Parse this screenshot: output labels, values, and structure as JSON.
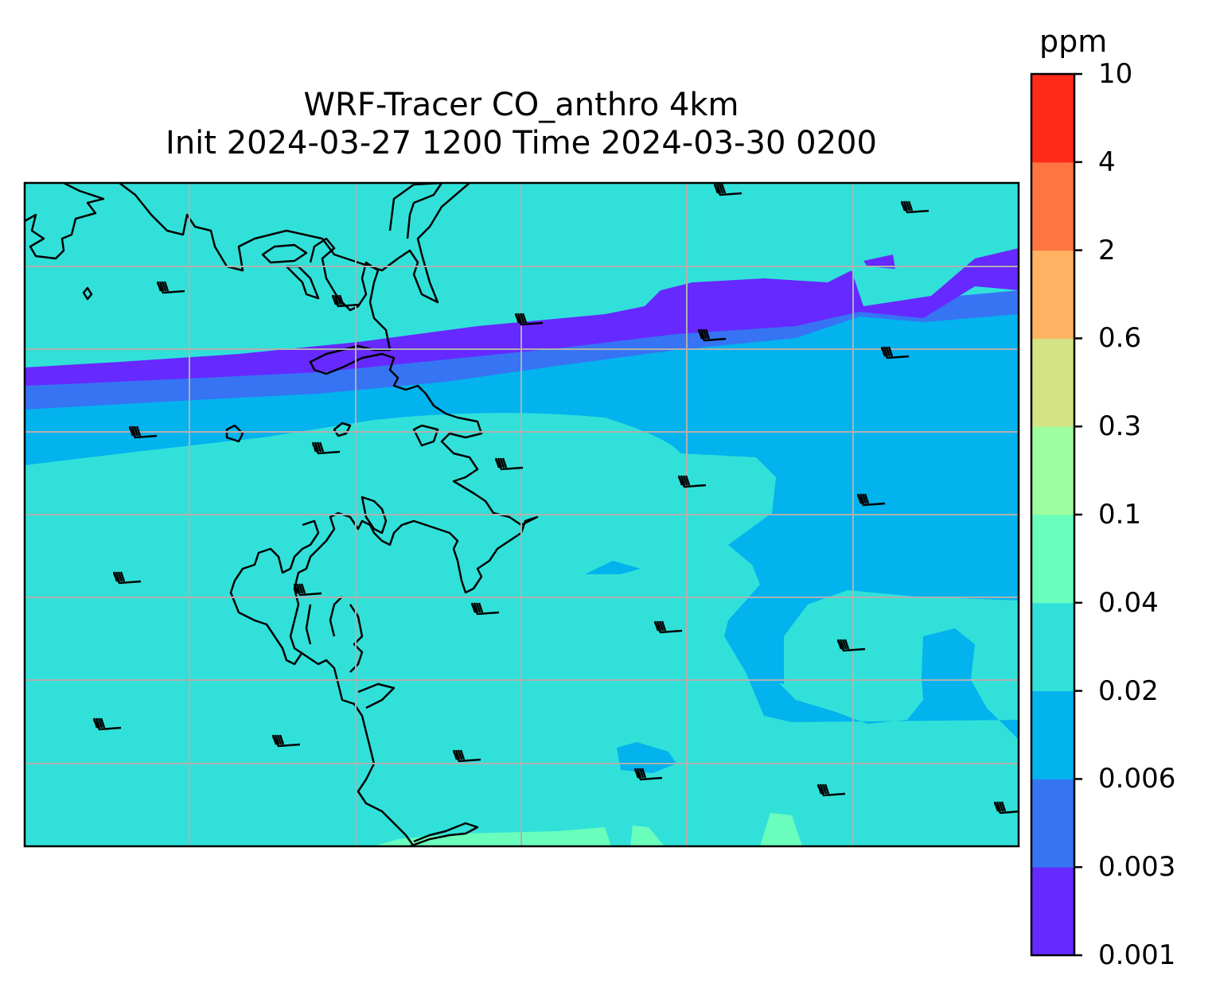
{
  "title": {
    "line1": "WRF-Tracer CO_anthro 4km",
    "line2": "Init 2024-03-27 1200 Time 2024-03-30 0200"
  },
  "colorbar": {
    "units": "ppm",
    "levels": [
      "0.001",
      "0.003",
      "0.006",
      "0.02",
      "0.04",
      "0.1",
      "0.3",
      "0.6",
      "2",
      "4",
      "10"
    ],
    "colors": [
      "#6629ff",
      "#3674f4",
      "#02b3ee",
      "#31e1d9",
      "#6afebd",
      "#9cfea0",
      "#d4e384",
      "#feb262",
      "#ff7542",
      "#ff2a18"
    ]
  },
  "map": {
    "below_min_color": "#ffffff",
    "coastline_color": "#000000",
    "gridline_color": "#b0b0b0",
    "wind_barb_color": "#000000"
  }
}
